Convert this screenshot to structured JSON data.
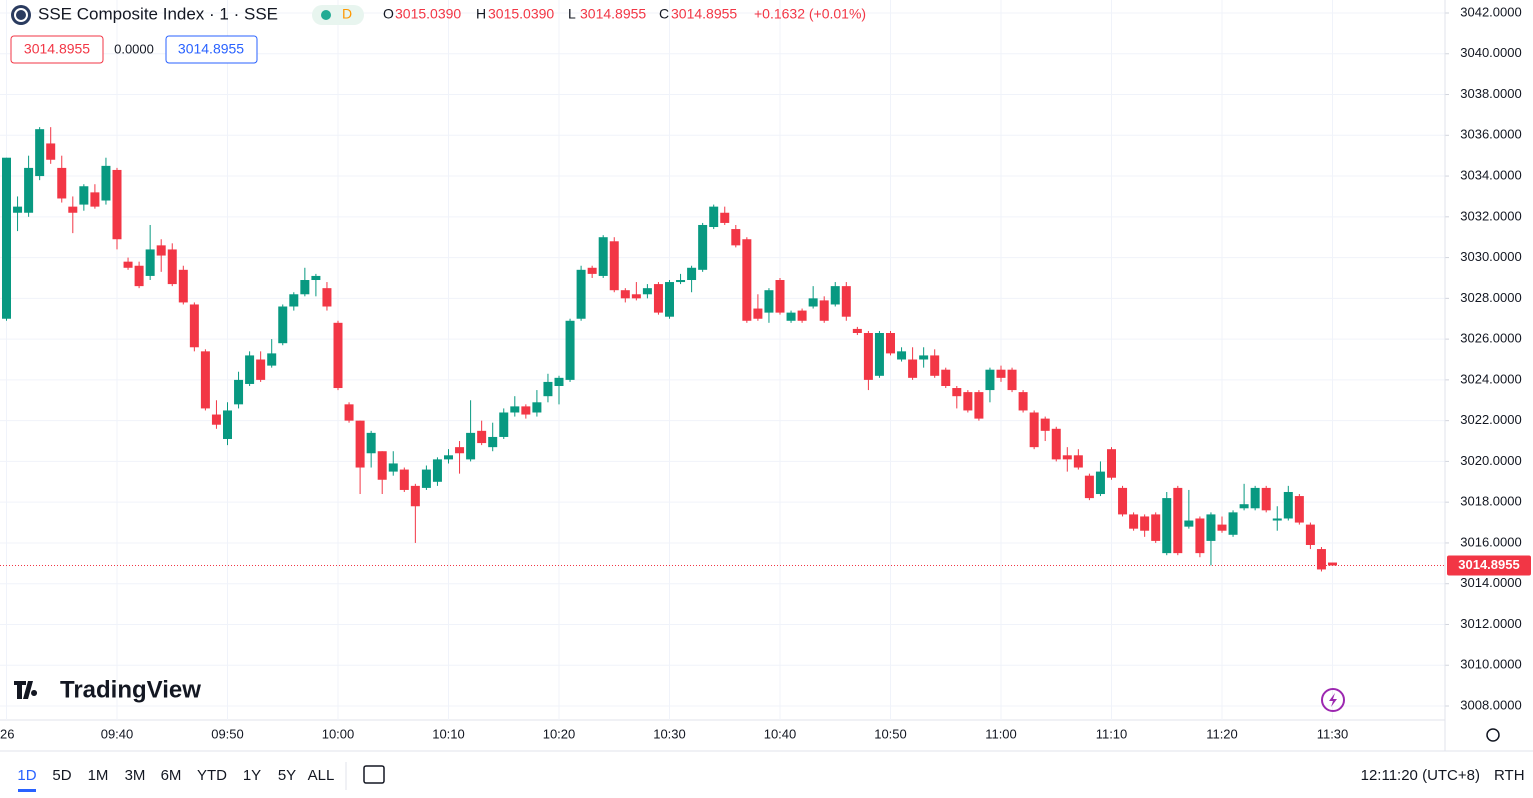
{
  "header": {
    "title": "SSE Composite Index · 1 · SSE",
    "interval": "D",
    "ohlc": [
      {
        "label": "O",
        "value": "3015.0390"
      },
      {
        "label": "H",
        "value": "3015.0390"
      },
      {
        "label": "L",
        "value": "3014.8955"
      },
      {
        "label": "C",
        "value": "3014.8955"
      }
    ],
    "change": "+0.1632 (+0.01%)",
    "boxes": [
      "3014.8955",
      "0.0000",
      "3014.8955"
    ]
  },
  "watermark": "TradingView",
  "toolbar": {
    "ranges": [
      "1D",
      "5D",
      "1M",
      "3M",
      "6M",
      "YTD",
      "1Y",
      "5Y",
      "ALL"
    ],
    "clock": "12:11:20 (UTC+8)",
    "session": "RTH"
  },
  "chart_data": {
    "type": "candlestick",
    "up_color": "#089981",
    "down_color": "#f23645",
    "categories": [
      "26",
      null,
      null,
      null,
      null,
      null,
      null,
      null,
      null,
      null,
      "09:40",
      null,
      null,
      null,
      null,
      null,
      null,
      null,
      null,
      null,
      "09:50",
      null,
      null,
      null,
      null,
      null,
      null,
      null,
      null,
      null,
      "10:00",
      null,
      null,
      null,
      null,
      null,
      null,
      null,
      null,
      null,
      "10:10",
      null,
      null,
      null,
      null,
      null,
      null,
      null,
      null,
      null,
      "10:20",
      null,
      null,
      null,
      null,
      null,
      null,
      null,
      null,
      null,
      "10:30",
      null,
      null,
      null,
      null,
      null,
      null,
      null,
      null,
      null,
      "10:40",
      null,
      null,
      null,
      null,
      null,
      null,
      null,
      null,
      null,
      "10:50",
      null,
      null,
      null,
      null,
      null,
      null,
      null,
      null,
      null,
      "11:00",
      null,
      null,
      null,
      null,
      null,
      null,
      null,
      null,
      null,
      "11:10",
      null,
      null,
      null,
      null,
      null,
      null,
      null,
      null,
      null,
      "11:20",
      null,
      null,
      null,
      null,
      null,
      null,
      null,
      null,
      null,
      "11:30"
    ],
    "open": [
      3027.0,
      3032.2,
      3032.2,
      3034.0,
      3035.6,
      3034.4,
      3032.5,
      3032.6,
      3033.2,
      3032.8,
      3034.3,
      3029.8,
      3029.6,
      3029.1,
      3030.6,
      3030.4,
      3029.4,
      3027.7,
      3025.4,
      3022.3,
      3021.1,
      3022.8,
      3023.8,
      3025.0,
      3024.7,
      3025.8,
      3027.6,
      3028.2,
      3028.9,
      3028.5,
      3026.8,
      3022.8,
      3022.0,
      3020.4,
      3020.5,
      3019.5,
      3019.6,
      3018.8,
      3018.7,
      3019.0,
      3020.1,
      3020.7,
      3020.1,
      3021.5,
      3020.7,
      3021.2,
      3022.4,
      3022.7,
      3022.4,
      3023.2,
      3023.7,
      3024.0,
      3027.0,
      3029.5,
      3029.1,
      3030.8,
      3028.4,
      3028.2,
      3028.2,
      3028.7,
      3027.1,
      3028.8,
      3028.9,
      3029.4,
      3031.5,
      3032.2,
      3031.4,
      3030.9,
      3027.5,
      3027.3,
      3028.9,
      3026.9,
      3027.4,
      3027.6,
      3027.9,
      3027.7,
      3028.6,
      3026.5,
      3026.3,
      3024.2,
      3026.3,
      3025.0,
      3025.0,
      3025.0,
      3025.2,
      3024.5,
      3023.6,
      3023.4,
      3023.4,
      3023.5,
      3024.5,
      3024.5,
      3023.4,
      3022.4,
      3022.1,
      3021.6,
      3020.3,
      3020.3,
      3019.3,
      3018.4,
      3020.6,
      3018.7,
      3017.4,
      3017.3,
      3017.4,
      3015.5,
      3018.7,
      3016.8,
      3017.2,
      3016.1,
      3016.9,
      3016.4,
      3017.7,
      3017.7,
      3018.7,
      3017.1,
      3017.2,
      3018.3,
      3016.9,
      3015.7,
      3015.039
    ],
    "high": [
      3034.9,
      3033.0,
      3035.0,
      3036.4,
      3036.4,
      3035.0,
      3033.0,
      3033.6,
      3033.6,
      3034.9,
      3034.4,
      3030.0,
      3029.8,
      3031.6,
      3030.9,
      3030.7,
      3029.6,
      3027.8,
      3025.5,
      3023.0,
      3022.9,
      3024.4,
      3025.4,
      3025.4,
      3026.0,
      3027.7,
      3028.3,
      3029.5,
      3029.2,
      3028.8,
      3026.9,
      3022.9,
      3022.0,
      3021.5,
      3020.5,
      3020.5,
      3019.7,
      3018.9,
      3019.8,
      3020.2,
      3020.6,
      3021.0,
      3023.0,
      3022.0,
      3021.9,
      3022.6,
      3023.2,
      3022.8,
      3023.5,
      3024.3,
      3024.2,
      3027.0,
      3029.6,
      3029.6,
      3031.1,
      3031.0,
      3028.5,
      3028.8,
      3028.7,
      3028.8,
      3028.9,
      3029.2,
      3029.6,
      3031.7,
      3032.6,
      3032.5,
      3031.6,
      3031.0,
      3028.2,
      3028.5,
      3029.0,
      3027.4,
      3027.5,
      3028.6,
      3028.1,
      3028.8,
      3028.8,
      3026.6,
      3026.4,
      3026.4,
      3026.4,
      3025.6,
      3025.6,
      3025.6,
      3025.5,
      3024.6,
      3023.7,
      3023.5,
      3023.5,
      3024.6,
      3024.7,
      3024.6,
      3023.5,
      3022.5,
      3022.2,
      3021.7,
      3020.7,
      3020.6,
      3019.4,
      3020.0,
      3020.7,
      3018.8,
      3017.5,
      3017.4,
      3017.5,
      3018.5,
      3018.8,
      3018.6,
      3017.3,
      3017.5,
      3017.3,
      3017.6,
      3018.9,
      3018.8,
      3018.8,
      3017.8,
      3018.8,
      3018.4,
      3017.0,
      3015.8,
      3015.039
    ],
    "low": [
      3026.9,
      3031.3,
      3032.0,
      3033.8,
      3034.6,
      3032.7,
      3031.2,
      3032.3,
      3032.4,
      3032.6,
      3030.4,
      3029.4,
      3028.5,
      3028.9,
      3029.3,
      3028.6,
      3027.7,
      3025.4,
      3022.5,
      3021.6,
      3020.8,
      3022.6,
      3023.7,
      3023.9,
      3024.6,
      3025.7,
      3027.4,
      3028.1,
      3028.1,
      3027.4,
      3023.5,
      3021.9,
      3018.4,
      3019.7,
      3018.4,
      3019.3,
      3018.5,
      3016.0,
      3018.6,
      3018.8,
      3019.9,
      3019.4,
      3020.0,
      3020.8,
      3020.5,
      3021.1,
      3022.2,
      3022.1,
      3022.2,
      3022.9,
      3022.8,
      3023.9,
      3026.9,
      3029.0,
      3029.0,
      3028.3,
      3027.8,
      3027.9,
      3028.0,
      3027.2,
      3027.0,
      3028.7,
      3028.3,
      3029.3,
      3031.4,
      3031.6,
      3030.5,
      3026.8,
      3026.9,
      3026.8,
      3027.2,
      3026.8,
      3026.8,
      3027.5,
      3026.8,
      3027.6,
      3026.9,
      3026.2,
      3023.5,
      3024.1,
      3025.2,
      3024.9,
      3024.0,
      3024.6,
      3024.1,
      3023.6,
      3022.6,
      3022.4,
      3022.0,
      3022.9,
      3023.9,
      3023.4,
      3022.4,
      3020.6,
      3021.0,
      3020.0,
      3019.5,
      3019.6,
      3018.1,
      3018.3,
      3019.1,
      3017.3,
      3016.6,
      3016.3,
      3016.0,
      3015.4,
      3015.4,
      3016.7,
      3015.3,
      3014.9,
      3016.5,
      3016.3,
      3017.6,
      3017.6,
      3017.5,
      3016.6,
      3017.1,
      3016.9,
      3015.7,
      3014.6,
      3014.8955
    ],
    "close": [
      3034.9,
      3032.5,
      3034.4,
      3036.3,
      3034.8,
      3032.9,
      3032.2,
      3033.5,
      3032.5,
      3034.5,
      3030.9,
      3029.5,
      3028.6,
      3030.4,
      3030.1,
      3028.7,
      3027.8,
      3025.6,
      3022.6,
      3021.8,
      3022.5,
      3024.0,
      3025.2,
      3024.0,
      3025.3,
      3027.6,
      3028.2,
      3028.9,
      3029.1,
      3027.6,
      3023.6,
      3022.0,
      3019.7,
      3021.4,
      3019.1,
      3019.9,
      3018.6,
      3017.8,
      3019.6,
      3020.1,
      3020.3,
      3020.4,
      3021.4,
      3020.9,
      3021.2,
      3022.4,
      3022.7,
      3022.3,
      3022.9,
      3023.9,
      3024.1,
      3026.9,
      3029.4,
      3029.2,
      3031.0,
      3028.4,
      3028.0,
      3028.0,
      3028.5,
      3027.3,
      3028.8,
      3028.9,
      3029.5,
      3031.6,
      3032.5,
      3031.7,
      3030.6,
      3026.9,
      3027.0,
      3028.4,
      3027.3,
      3027.3,
      3026.9,
      3028.0,
      3026.9,
      3028.6,
      3027.1,
      3026.3,
      3024.0,
      3026.3,
      3025.3,
      3025.4,
      3024.1,
      3025.2,
      3024.2,
      3023.7,
      3023.2,
      3022.5,
      3022.1,
      3024.5,
      3024.1,
      3023.5,
      3022.5,
      3020.7,
      3021.5,
      3020.1,
      3020.1,
      3019.7,
      3018.2,
      3019.5,
      3019.2,
      3017.4,
      3016.7,
      3016.6,
      3016.1,
      3018.2,
      3015.5,
      3017.1,
      3015.5,
      3017.4,
      3016.6,
      3017.5,
      3017.9,
      3018.7,
      3017.6,
      3017.2,
      3018.5,
      3017.0,
      3015.9,
      3014.7,
      3014.8955
    ],
    "ylim": [
      3007.4,
      3042.3
    ],
    "yticks": [
      {
        "value": 3008,
        "label": "3008.0000"
      },
      {
        "value": 3010,
        "label": "3010.0000"
      },
      {
        "value": 3012,
        "label": "3012.0000"
      },
      {
        "value": 3014,
        "label": "3014.0000"
      },
      {
        "value": 3016,
        "label": "3016.0000"
      },
      {
        "value": 3018,
        "label": "3018.0000"
      },
      {
        "value": 3020,
        "label": "3020.0000"
      },
      {
        "value": 3022,
        "label": "3022.0000"
      },
      {
        "value": 3024,
        "label": "3024.0000"
      },
      {
        "value": 3026,
        "label": "3026.0000"
      },
      {
        "value": 3028,
        "label": "3028.0000"
      },
      {
        "value": 3030,
        "label": "3030.0000"
      },
      {
        "value": 3032,
        "label": "3032.0000"
      },
      {
        "value": 3034,
        "label": "3034.0000"
      },
      {
        "value": 3036,
        "label": "3036.0000"
      },
      {
        "value": 3038,
        "label": "3038.0000"
      },
      {
        "value": 3040,
        "label": "3040.0000"
      },
      {
        "value": 3042,
        "label": "3042.0000"
      }
    ],
    "grid": true
  }
}
